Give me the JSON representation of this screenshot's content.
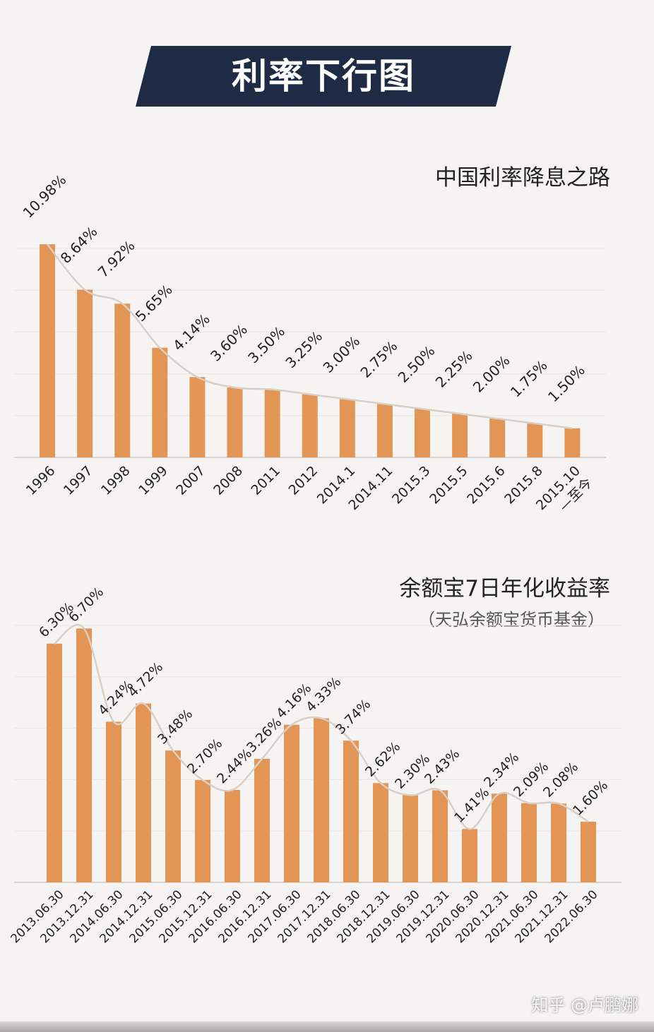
{
  "banner": {
    "title": "利率下行图"
  },
  "watermark": "知乎 @卢鹏娜",
  "chart_data": [
    {
      "type": "bar",
      "title": "中国利率降息之路",
      "categories": [
        "1996",
        "1997",
        "1998",
        "1999",
        "2007",
        "2008",
        "2011",
        "2012",
        "2014.1",
        "2014.11",
        "2015.3",
        "2015.5",
        "2015.6",
        "2015.8",
        "2015.10\n—至今"
      ],
      "values": [
        10.98,
        8.64,
        7.92,
        5.65,
        4.14,
        3.6,
        3.5,
        3.25,
        3.0,
        2.75,
        2.5,
        2.25,
        2.0,
        1.75,
        1.5
      ],
      "data_labels": [
        "10.98%",
        "8.64%",
        "7.92%",
        "5.65%",
        "4.14%",
        "3.60%",
        "3.50%",
        "3.25%",
        "3.00%",
        "2.75%",
        "2.50%",
        "2.25%",
        "2.00%",
        "1.75%",
        "1.50%"
      ],
      "ylim": [
        0,
        11.2
      ],
      "grid": true,
      "bar_color": "#e39556",
      "line_color": "#d8cfc6",
      "trend_line": "smooth"
    },
    {
      "type": "bar",
      "title": "余额宝7日年化收益率",
      "subtitle": "（天弘余额宝货币基金）",
      "categories": [
        "2013.06.30",
        "2013.12.31",
        "2014.06.30",
        "2014.12.31",
        "2015.06.30",
        "2015.12.31",
        "2016.06.30",
        "2016.12.31",
        "2017.06.30",
        "2017.12.31",
        "2018.06.30",
        "2018.12.31",
        "2019.06.30",
        "2019.12.31",
        "2020.06.30",
        "2020.12.31",
        "2021.06.30",
        "2021.12.31",
        "2022.06.30"
      ],
      "values": [
        6.3,
        6.7,
        4.24,
        4.72,
        3.48,
        2.7,
        2.44,
        3.26,
        4.16,
        4.33,
        3.74,
        2.62,
        2.3,
        2.43,
        1.41,
        2.34,
        2.09,
        2.08,
        1.6
      ],
      "data_labels": [
        "6.30%",
        "6.70%",
        "4.24%",
        "4.72%",
        "3.48%",
        "2.70%",
        "2.44%",
        "3.26%",
        "4.16%",
        "4.33%",
        "3.74%",
        "2.62%",
        "2.30%",
        "2.43%",
        "1.41%",
        "2.34%",
        "2.09%",
        "2.08%",
        "1.60%"
      ],
      "ylim": [
        0,
        6.8
      ],
      "grid": true,
      "bar_color": "#e39556",
      "line_color": "#d8cfc6",
      "trend_line": "smooth"
    }
  ]
}
